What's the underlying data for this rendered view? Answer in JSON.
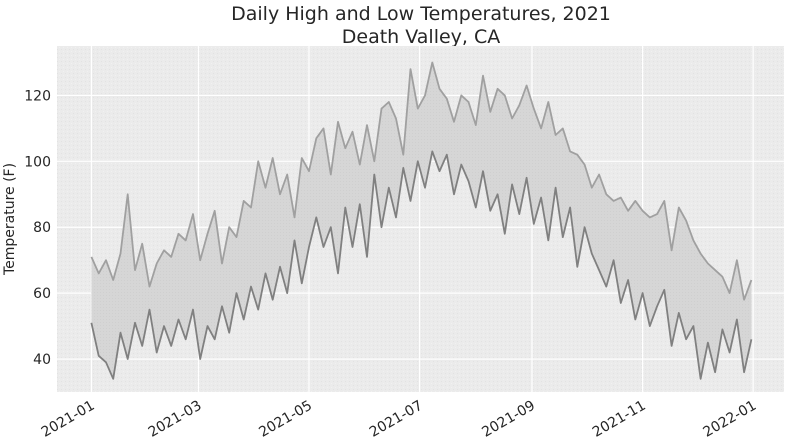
{
  "chart_data": {
    "type": "line",
    "title": "Daily High and Low Temperatures, 2021",
    "subtitle": "Death Valley, CA",
    "xlabel": "",
    "ylabel": "Temperature (F)",
    "xlim": [
      "2020-12-13",
      "2022-01-18"
    ],
    "ylim": [
      30,
      135
    ],
    "grid": true,
    "legend": "none",
    "fill_between": true,
    "colors": {
      "background": "#ebebeb",
      "grid": "#ffffff",
      "high": "#a0a0a0",
      "low": "#808080",
      "fill": "#d6d6d6"
    },
    "x_tick_labels": [
      {
        "date": "2021-01-01",
        "label": "2021-01"
      },
      {
        "date": "2021-03-01",
        "label": "2021-03"
      },
      {
        "date": "2021-05-01",
        "label": "2021-05"
      },
      {
        "date": "2021-07-01",
        "label": "2021-07"
      },
      {
        "date": "2021-09-01",
        "label": "2021-09"
      },
      {
        "date": "2021-11-01",
        "label": "2021-11"
      },
      {
        "date": "2022-01-01",
        "label": "2022-01"
      }
    ],
    "y_ticks": [
      40,
      60,
      80,
      100,
      120
    ],
    "series": [
      {
        "key": "high",
        "x": [
          "2021-01-01",
          "2021-01-05",
          "2021-01-09",
          "2021-01-13",
          "2021-01-17",
          "2021-01-21",
          "2021-01-25",
          "2021-01-29",
          "2021-02-02",
          "2021-02-06",
          "2021-02-10",
          "2021-02-14",
          "2021-02-18",
          "2021-02-22",
          "2021-02-26",
          "2021-03-02",
          "2021-03-06",
          "2021-03-10",
          "2021-03-14",
          "2021-03-18",
          "2021-03-22",
          "2021-03-26",
          "2021-03-30",
          "2021-04-03",
          "2021-04-07",
          "2021-04-11",
          "2021-04-15",
          "2021-04-19",
          "2021-04-23",
          "2021-04-27",
          "2021-05-01",
          "2021-05-05",
          "2021-05-09",
          "2021-05-13",
          "2021-05-17",
          "2021-05-21",
          "2021-05-25",
          "2021-05-29",
          "2021-06-02",
          "2021-06-06",
          "2021-06-10",
          "2021-06-14",
          "2021-06-18",
          "2021-06-22",
          "2021-06-26",
          "2021-06-30",
          "2021-07-04",
          "2021-07-08",
          "2021-07-12",
          "2021-07-16",
          "2021-07-20",
          "2021-07-24",
          "2021-07-28",
          "2021-08-01",
          "2021-08-05",
          "2021-08-09",
          "2021-08-13",
          "2021-08-17",
          "2021-08-21",
          "2021-08-25",
          "2021-08-29",
          "2021-09-02",
          "2021-09-06",
          "2021-09-10",
          "2021-09-14",
          "2021-09-18",
          "2021-09-22",
          "2021-09-26",
          "2021-09-30",
          "2021-10-04",
          "2021-10-08",
          "2021-10-12",
          "2021-10-16",
          "2021-10-20",
          "2021-10-24",
          "2021-10-28",
          "2021-11-01",
          "2021-11-05",
          "2021-11-09",
          "2021-11-13",
          "2021-11-17",
          "2021-11-21",
          "2021-11-25",
          "2021-11-29",
          "2021-12-03",
          "2021-12-07",
          "2021-12-11",
          "2021-12-15",
          "2021-12-19",
          "2021-12-23",
          "2021-12-27",
          "2021-12-31"
        ],
        "values": [
          71,
          66,
          70,
          64,
          72,
          90,
          67,
          75,
          62,
          69,
          73,
          71,
          78,
          76,
          84,
          70,
          78,
          85,
          69,
          80,
          77,
          88,
          86,
          100,
          92,
          101,
          90,
          96,
          83,
          101,
          97,
          107,
          110,
          96,
          112,
          104,
          109,
          99,
          111,
          100,
          116,
          118,
          113,
          102,
          128,
          116,
          120,
          130,
          122,
          119,
          112,
          120,
          118,
          111,
          126,
          115,
          122,
          120,
          113,
          117,
          123,
          116,
          110,
          118,
          108,
          110,
          103,
          102,
          99,
          92,
          96,
          90,
          88,
          89,
          85,
          88,
          85,
          83,
          84,
          88,
          73,
          86,
          82,
          76,
          72,
          69,
          67,
          65,
          60,
          70,
          58,
          64
        ],
        "name": ""
      },
      {
        "key": "low",
        "x": [
          "2021-01-01",
          "2021-01-05",
          "2021-01-09",
          "2021-01-13",
          "2021-01-17",
          "2021-01-21",
          "2021-01-25",
          "2021-01-29",
          "2021-02-02",
          "2021-02-06",
          "2021-02-10",
          "2021-02-14",
          "2021-02-18",
          "2021-02-22",
          "2021-02-26",
          "2021-03-02",
          "2021-03-06",
          "2021-03-10",
          "2021-03-14",
          "2021-03-18",
          "2021-03-22",
          "2021-03-26",
          "2021-03-30",
          "2021-04-03",
          "2021-04-07",
          "2021-04-11",
          "2021-04-15",
          "2021-04-19",
          "2021-04-23",
          "2021-04-27",
          "2021-05-01",
          "2021-05-05",
          "2021-05-09",
          "2021-05-13",
          "2021-05-17",
          "2021-05-21",
          "2021-05-25",
          "2021-05-29",
          "2021-06-02",
          "2021-06-06",
          "2021-06-10",
          "2021-06-14",
          "2021-06-18",
          "2021-06-22",
          "2021-06-26",
          "2021-06-30",
          "2021-07-04",
          "2021-07-08",
          "2021-07-12",
          "2021-07-16",
          "2021-07-20",
          "2021-07-24",
          "2021-07-28",
          "2021-08-01",
          "2021-08-05",
          "2021-08-09",
          "2021-08-13",
          "2021-08-17",
          "2021-08-21",
          "2021-08-25",
          "2021-08-29",
          "2021-09-02",
          "2021-09-06",
          "2021-09-10",
          "2021-09-14",
          "2021-09-18",
          "2021-09-22",
          "2021-09-26",
          "2021-09-30",
          "2021-10-04",
          "2021-10-08",
          "2021-10-12",
          "2021-10-16",
          "2021-10-20",
          "2021-10-24",
          "2021-10-28",
          "2021-11-01",
          "2021-11-05",
          "2021-11-09",
          "2021-11-13",
          "2021-11-17",
          "2021-11-21",
          "2021-11-25",
          "2021-11-29",
          "2021-12-03",
          "2021-12-07",
          "2021-12-11",
          "2021-12-15",
          "2021-12-19",
          "2021-12-23",
          "2021-12-27",
          "2021-12-31"
        ],
        "values": [
          51,
          41,
          39,
          34,
          48,
          40,
          51,
          44,
          55,
          42,
          50,
          44,
          52,
          46,
          55,
          40,
          50,
          46,
          56,
          48,
          60,
          52,
          62,
          55,
          66,
          58,
          68,
          60,
          76,
          63,
          74,
          83,
          74,
          80,
          66,
          86,
          74,
          87,
          71,
          96,
          80,
          92,
          83,
          98,
          88,
          100,
          92,
          103,
          97,
          102,
          90,
          99,
          94,
          86,
          97,
          85,
          90,
          78,
          93,
          84,
          95,
          81,
          89,
          76,
          92,
          77,
          86,
          68,
          80,
          72,
          67,
          62,
          70,
          57,
          64,
          52,
          60,
          50,
          56,
          61,
          44,
          54,
          46,
          50,
          34,
          45,
          36,
          49,
          42,
          52,
          36,
          46
        ],
        "name": ""
      }
    ]
  }
}
